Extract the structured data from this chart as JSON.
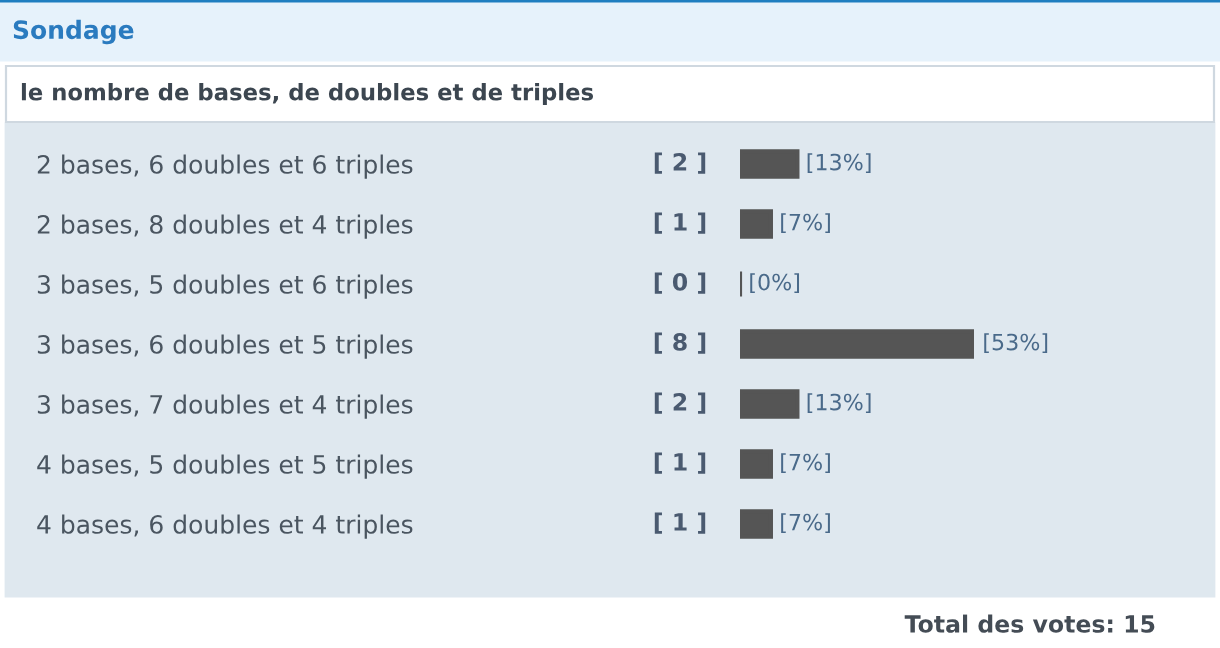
{
  "chart_data": {
    "type": "bar",
    "orientation": "horizontal",
    "title": "Sondage",
    "subtitle": "le nombre de bases, de doubles et de triples",
    "categories": [
      "2 bases, 6 doubles et 6 triples",
      "2 bases, 8 doubles et 4 triples",
      "3 bases, 5 doubles et 6 triples",
      "3 bases, 6 doubles et 5 triples",
      "3 bases, 7 doubles et 4 triples",
      "4 bases, 5 doubles et 5 triples",
      "4 bases, 6 doubles et 4 triples"
    ],
    "values": [
      13,
      7,
      0,
      53,
      13,
      7,
      7
    ],
    "value_labels": [
      "[13%]",
      "[7%]",
      "[0%]",
      "[53%]",
      "[13%]",
      "[7%]",
      "[7%]"
    ],
    "color": "#555555",
    "annotations": [
      "[ 2 ]",
      "[ 1 ]",
      "[ 0 ]",
      "[ 8 ]",
      "[ 2 ]",
      "[ 1 ]",
      "[ 1 ]",
      "Total des votes: 15"
    ],
    "legend": false
  }
}
